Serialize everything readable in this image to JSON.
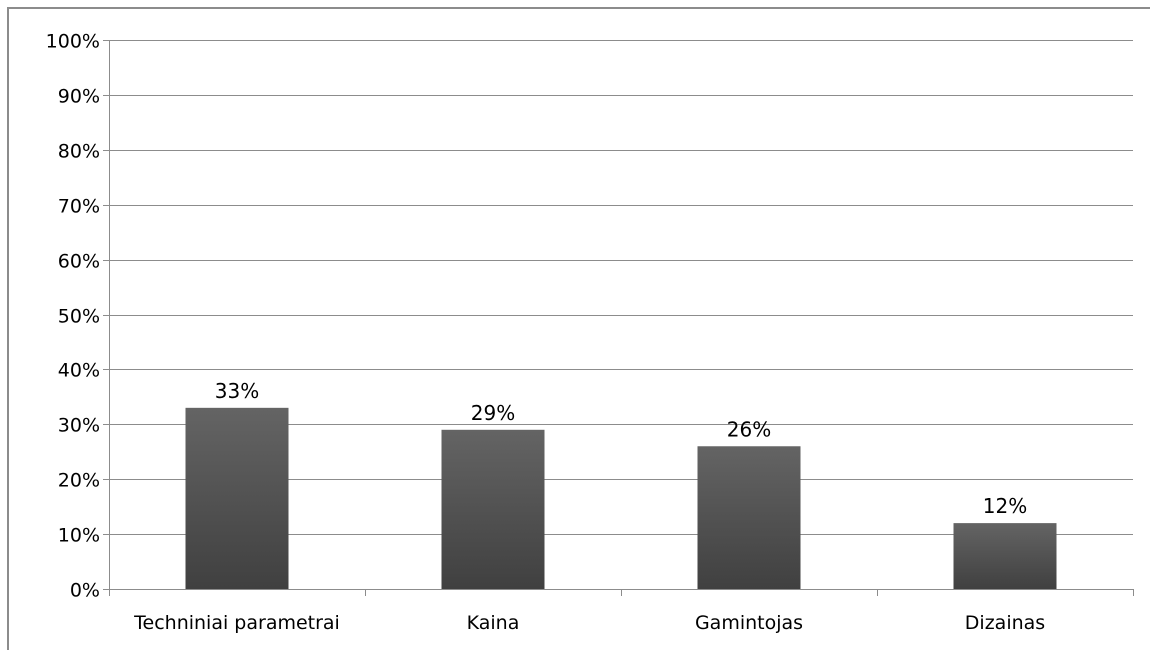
{
  "chart_data": {
    "type": "bar",
    "title": "",
    "xlabel": "",
    "ylabel": "",
    "categories": [
      "Techniniai parametrai",
      "Kaina",
      "Gamintojas",
      "Dizainas"
    ],
    "values": [
      33,
      29,
      26,
      12
    ],
    "data_labels": [
      "33%",
      "29%",
      "26%",
      "12%"
    ],
    "ylim": [
      0,
      100
    ],
    "y_ticks": [
      0,
      10,
      20,
      30,
      40,
      50,
      60,
      70,
      80,
      90,
      100
    ],
    "y_tick_labels": [
      "0%",
      "10%",
      "20%",
      "30%",
      "40%",
      "50%",
      "60%",
      "70%",
      "80%",
      "90%",
      "100%"
    ],
    "grid": true,
    "legend": "none",
    "colors": {
      "bar_top": "#646464",
      "bar_bottom": "#404040",
      "grid": "#8c8c8c",
      "axis": "#8c8c8c"
    }
  }
}
